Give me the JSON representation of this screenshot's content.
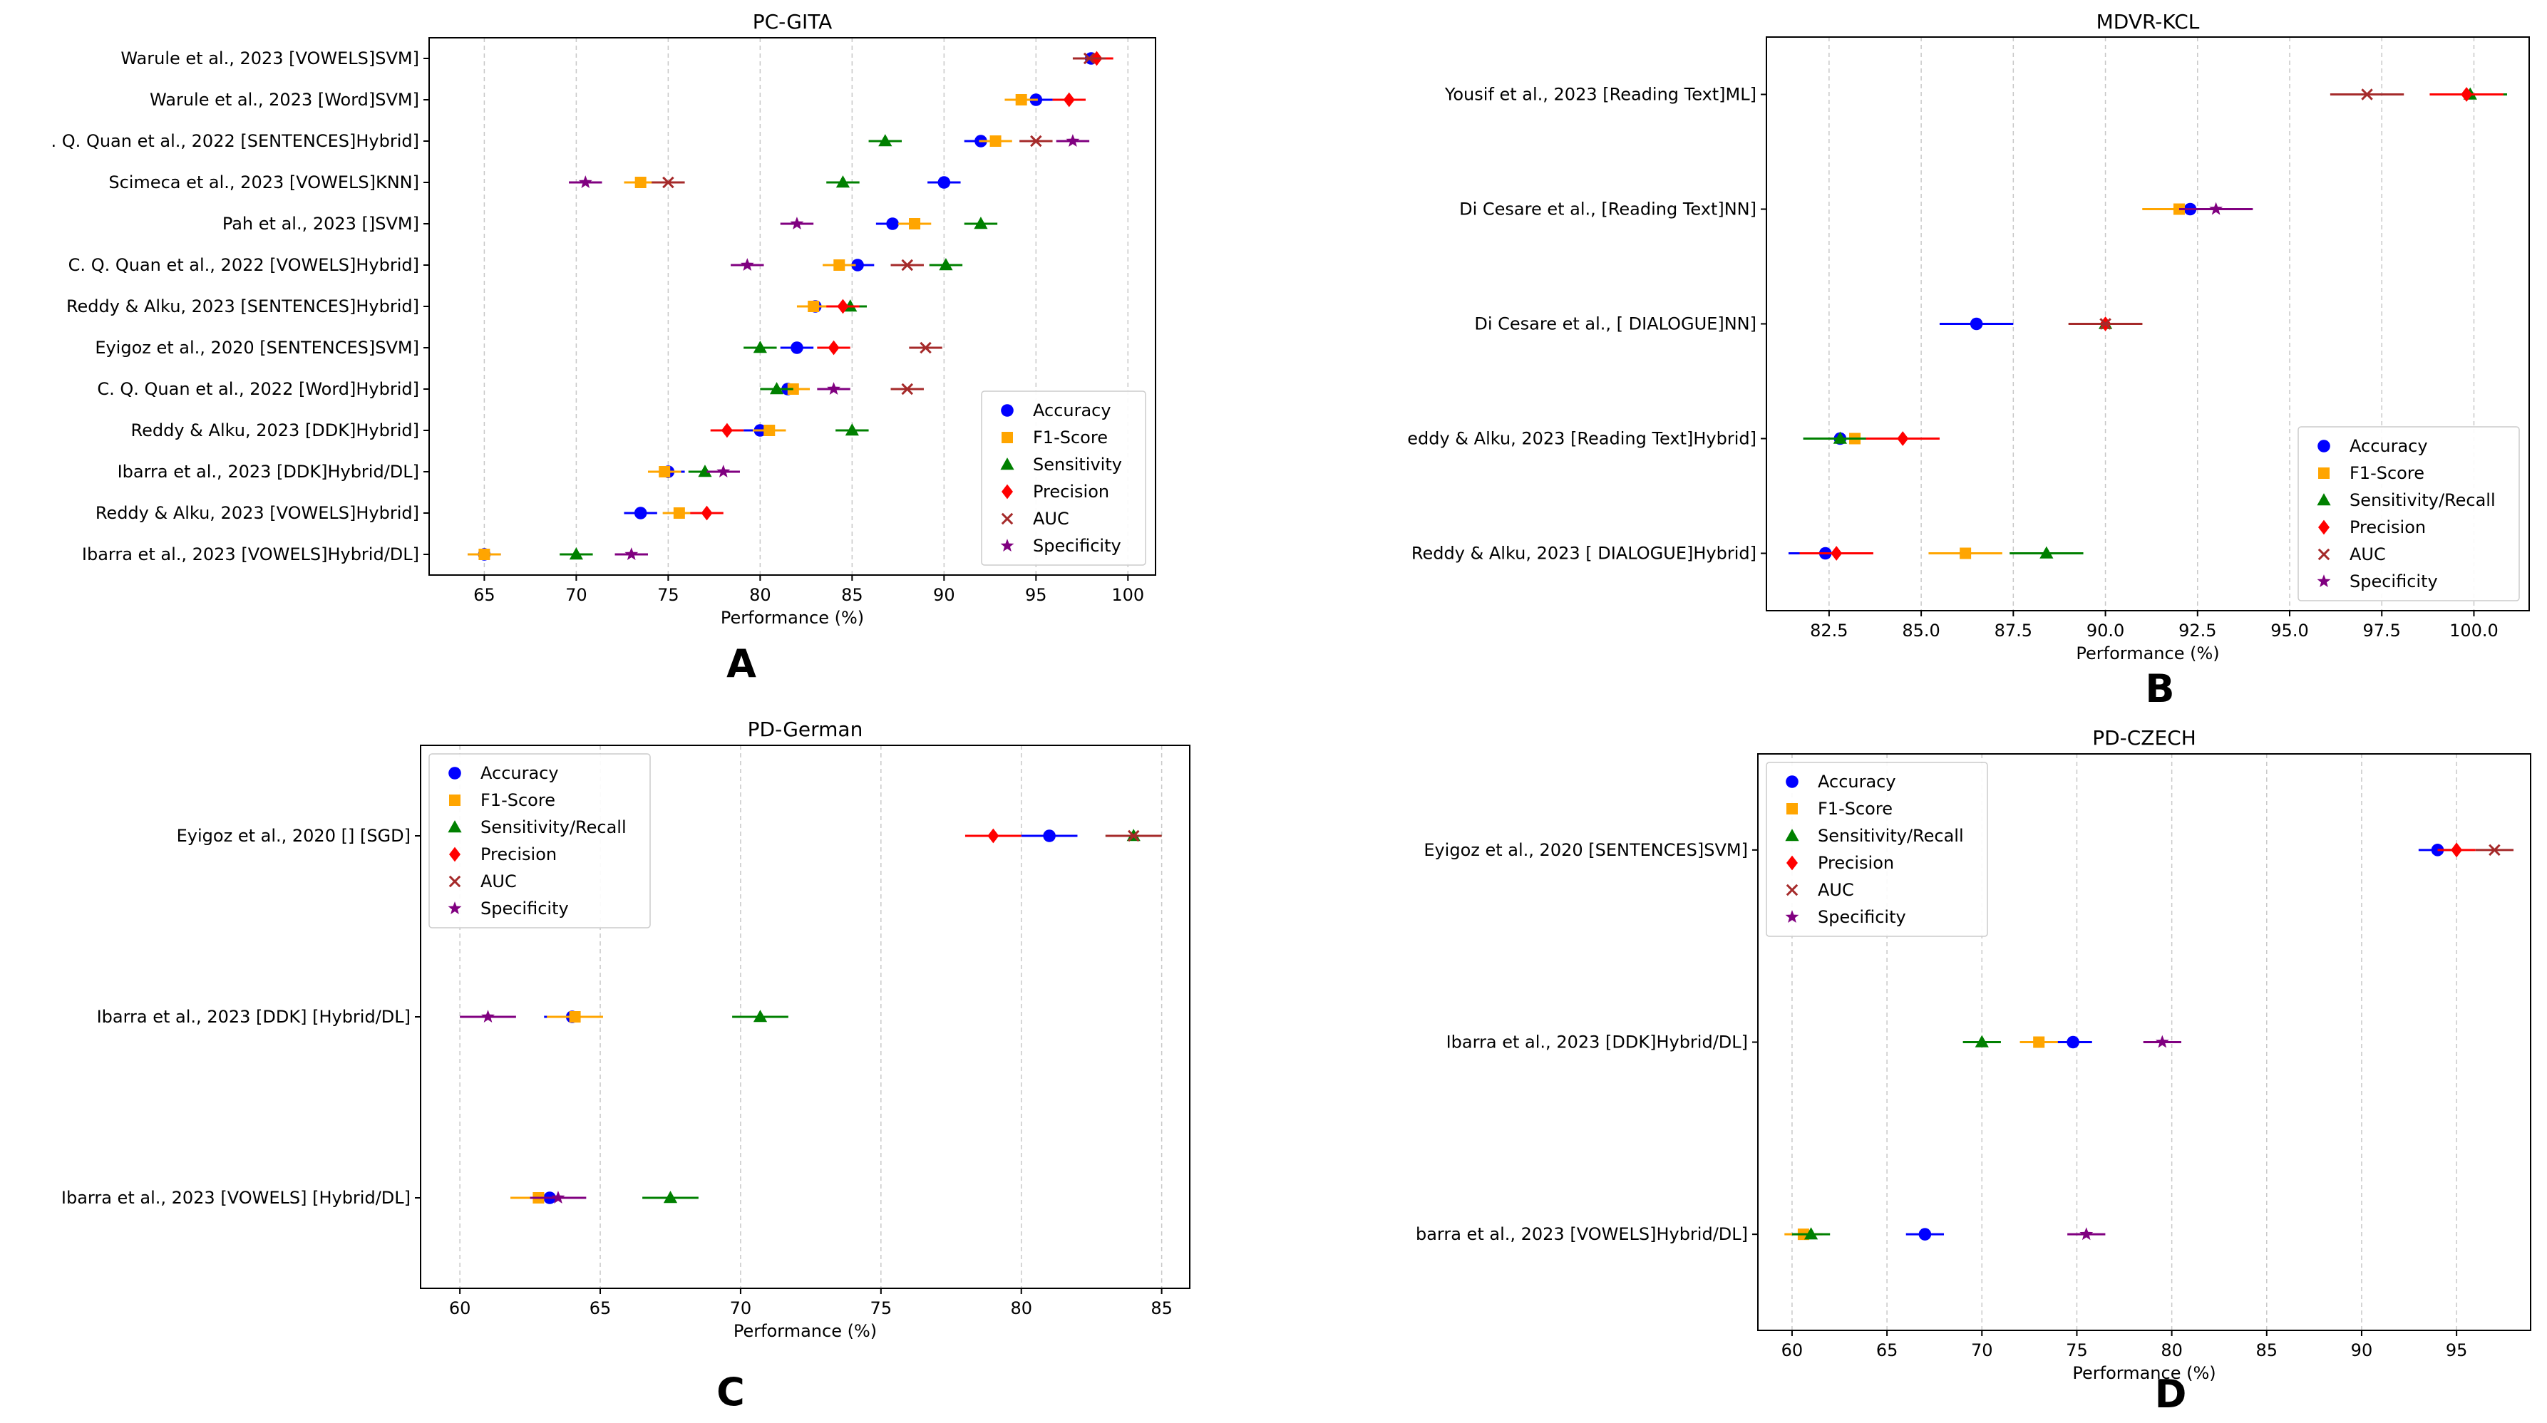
{
  "colors": {
    "Accuracy": "#0000ff",
    "F1-Score": "#ffa500",
    "Sensitivity": "#008000",
    "Sensitivity/Recall": "#008000",
    "Precision": "#ff0000",
    "AUC": "#a52a2a",
    "Specificity": "#800080"
  },
  "markers": {
    "Accuracy": "circle",
    "F1-Score": "square",
    "Sensitivity": "triangle",
    "Sensitivity/Recall": "triangle",
    "Precision": "diamond",
    "AUC": "x",
    "Specificity": "star"
  },
  "chart_data": [
    {
      "type": "scatter",
      "panel": "A",
      "title": "PC-GITA",
      "xlabel": "Performance (%)",
      "ylabel": "",
      "xlim": [
        62,
        101.5
      ],
      "xticks": [
        65,
        70,
        75,
        80,
        85,
        90,
        95,
        100
      ],
      "grid": "x-dashed",
      "legend_position": "bottom-right",
      "legend": [
        "Accuracy",
        "F1-Score",
        "Sensitivity",
        "Precision",
        "AUC",
        "Specificity"
      ],
      "categories": [
        "Warule et al., 2023 [VOWELS]SVM]",
        "Warule et al., 2023 [Word]SVM]",
        ". Q. Quan et al., 2022 [SENTENCES]Hybrid]",
        "Scimeca et al., 2023 [VOWELS]KNN]",
        "Pah et al., 2023 []SVM]",
        "C. Q. Quan et al., 2022 [VOWELS]Hybrid]",
        "Reddy & Alku, 2023 [SENTENCES]Hybrid]",
        "Eyigoz et al., 2020 [SENTENCES]SVM]",
        "C. Q. Quan et al., 2022 [Word]Hybrid]",
        "Reddy & Alku, 2023 [DDK]Hybrid]",
        "Ibarra et al., 2023 [DDK]Hybrid/DL]",
        "Reddy & Alku, 2023 [VOWELS]Hybrid]",
        "Ibarra et al., 2023 [VOWELS]Hybrid/DL]"
      ],
      "series": [
        {
          "name": "Accuracy",
          "values": [
            98.0,
            95.0,
            92.0,
            90.0,
            87.2,
            85.3,
            83.0,
            82.0,
            81.5,
            80.0,
            75.0,
            73.5,
            65.0
          ],
          "err": 0.9
        },
        {
          "name": "F1-Score",
          "values": [
            null,
            94.2,
            92.8,
            73.5,
            88.4,
            84.3,
            82.9,
            null,
            81.8,
            80.5,
            74.8,
            75.6,
            65.0
          ],
          "err": 0.9
        },
        {
          "name": "Sensitivity",
          "values": [
            null,
            null,
            86.8,
            84.5,
            92.0,
            90.1,
            84.9,
            80.0,
            80.9,
            85.0,
            77.0,
            null,
            70.0
          ],
          "err": 0.9
        },
        {
          "name": "Precision",
          "values": [
            98.3,
            96.8,
            null,
            null,
            null,
            null,
            84.5,
            84.0,
            null,
            78.2,
            null,
            77.1,
            null
          ],
          "err": 0.9
        },
        {
          "name": "AUC",
          "values": [
            97.9,
            null,
            95.0,
            75.0,
            null,
            88.0,
            null,
            89.0,
            88.0,
            null,
            null,
            null,
            null
          ],
          "err": 0.9
        },
        {
          "name": "Specificity",
          "values": [
            null,
            null,
            97.0,
            70.5,
            82.0,
            79.3,
            null,
            null,
            84.0,
            null,
            78.0,
            null,
            73.0
          ],
          "err": 0.9
        }
      ]
    },
    {
      "type": "scatter",
      "panel": "B",
      "title": "MDVR-KCL",
      "xlabel": "Performance (%)",
      "ylabel": "",
      "xlim": [
        80.8,
        101.5
      ],
      "xticks": [
        82.5,
        85.0,
        87.5,
        90.0,
        92.5,
        95.0,
        97.5,
        100.0
      ],
      "xtick_labels": [
        "82.5",
        "85.0",
        "87.5",
        "90.0",
        "92.5",
        "95.0",
        "97.5",
        "100.0"
      ],
      "grid": "x-dashed",
      "legend_position": "bottom-right",
      "legend": [
        "Accuracy",
        "F1-Score",
        "Sensitivity/Recall",
        "Precision",
        "AUC",
        "Specificity"
      ],
      "categories": [
        "Yousif et al., 2023 [Reading Text]ML]",
        "Di Cesare et al.,  [Reading Text]NN]",
        "Di Cesare et al., [ DIALOGUE]NN]",
        "eddy & Alku, 2023 [Reading Text]Hybrid]",
        "Reddy & Alku, 2023 [ DIALOGUE]Hybrid]"
      ],
      "series": [
        {
          "name": "Accuracy",
          "values": [
            null,
            92.3,
            86.5,
            82.8,
            82.4
          ],
          "err": 1.0
        },
        {
          "name": "F1-Score",
          "values": [
            null,
            92.0,
            null,
            83.2,
            86.2
          ],
          "err": 1.0
        },
        {
          "name": "Sensitivity/Recall",
          "values": [
            99.9,
            null,
            90.0,
            82.8,
            88.4
          ],
          "err": 1.0
        },
        {
          "name": "Precision",
          "values": [
            99.8,
            null,
            90.0,
            84.5,
            82.7
          ],
          "err": 1.0
        },
        {
          "name": "AUC",
          "values": [
            97.1,
            null,
            90.0,
            null,
            null
          ],
          "err": 1.0
        },
        {
          "name": "Specificity",
          "values": [
            null,
            93.0,
            null,
            null,
            null
          ],
          "err": 1.0
        }
      ]
    },
    {
      "type": "scatter",
      "panel": "C",
      "title": "PD-German",
      "xlabel": "Performance (%)",
      "ylabel": "",
      "xlim": [
        58.6,
        86.0
      ],
      "xticks": [
        60,
        65,
        70,
        75,
        80,
        85
      ],
      "grid": "x-dashed",
      "legend_position": "top-left",
      "legend": [
        "Accuracy",
        "F1-Score",
        "Sensitivity/Recall",
        "Precision",
        "AUC",
        "Specificity"
      ],
      "categories": [
        "Eyigoz et al., 2020 [] [SGD]",
        "Ibarra et al., 2023 [DDK] [Hybrid/DL]",
        "Ibarra et al., 2023 [VOWELS] [Hybrid/DL]"
      ],
      "series": [
        {
          "name": "Accuracy",
          "values": [
            81.0,
            64.0,
            63.2
          ],
          "err": 1.0
        },
        {
          "name": "F1-Score",
          "values": [
            null,
            64.1,
            62.8
          ],
          "err": 1.0
        },
        {
          "name": "Sensitivity/Recall",
          "values": [
            84.0,
            70.7,
            67.5
          ],
          "err": 1.0
        },
        {
          "name": "Precision",
          "values": [
            79.0,
            null,
            null
          ],
          "err": 1.0
        },
        {
          "name": "AUC",
          "values": [
            84.0,
            null,
            null
          ],
          "err": 1.0
        },
        {
          "name": "Specificity",
          "values": [
            null,
            61.0,
            63.5
          ],
          "err": 1.0
        }
      ]
    },
    {
      "type": "scatter",
      "panel": "D",
      "title": "PD-CZECH",
      "xlabel": "Performance (%)",
      "ylabel": "",
      "xlim": [
        58.2,
        98.9
      ],
      "xticks": [
        60,
        65,
        70,
        75,
        80,
        85,
        90,
        95
      ],
      "grid": "x-dashed",
      "legend_position": "top-left",
      "legend": [
        "Accuracy",
        "F1-Score",
        "Sensitivity/Recall",
        "Precision",
        "AUC",
        "Specificity"
      ],
      "categories": [
        "Eyigoz et al., 2020 [SENTENCES]SVM]",
        "Ibarra et al., 2023 [DDK]Hybrid/DL]",
        "barra et al., 2023 [VOWELS]Hybrid/DL]"
      ],
      "series": [
        {
          "name": "Accuracy",
          "values": [
            94.0,
            74.8,
            67.0
          ],
          "err": 1.0
        },
        {
          "name": "F1-Score",
          "values": [
            null,
            73.0,
            60.6
          ],
          "err": 1.0
        },
        {
          "name": "Sensitivity/Recall",
          "values": [
            null,
            70.0,
            61.0
          ],
          "err": 1.0
        },
        {
          "name": "Precision",
          "values": [
            95.0,
            null,
            null
          ],
          "err": 1.0
        },
        {
          "name": "AUC",
          "values": [
            97.0,
            null,
            null
          ],
          "err": 1.0
        },
        {
          "name": "Specificity",
          "values": [
            null,
            79.5,
            75.5
          ],
          "err": 1.0
        }
      ]
    }
  ]
}
